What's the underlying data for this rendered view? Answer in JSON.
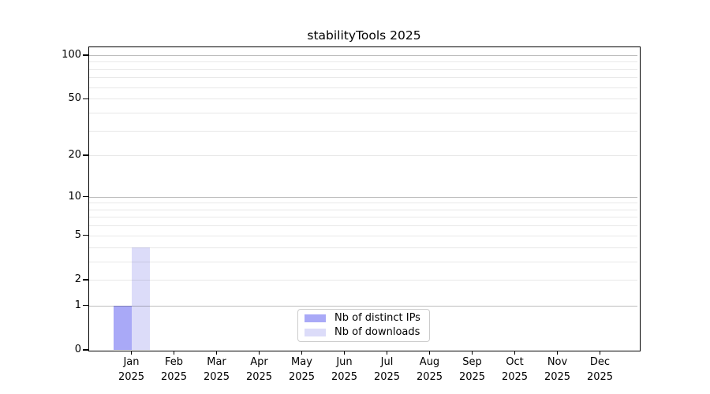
{
  "title": "stabilityTools 2025",
  "legend": {
    "items": [
      {
        "label": "Nb of distinct IPs",
        "color": "#a9a9f7"
      },
      {
        "label": "Nb of downloads",
        "color": "#dcdcf9"
      }
    ]
  },
  "chart_data": {
    "type": "bar",
    "title": "stabilityTools 2025",
    "categories": [
      "Jan 2025",
      "Feb 2025",
      "Mar 2025",
      "Apr 2025",
      "May 2025",
      "Jun 2025",
      "Jul 2025",
      "Aug 2025",
      "Sep 2025",
      "Oct 2025",
      "Nov 2025",
      "Dec 2025"
    ],
    "series": [
      {
        "name": "Nb of distinct IPs",
        "color": "#a9a9f7",
        "values": [
          1,
          0,
          0,
          0,
          0,
          0,
          0,
          0,
          0,
          0,
          0,
          0
        ]
      },
      {
        "name": "Nb of downloads",
        "color": "#dcdcf9",
        "values": [
          4,
          0,
          0,
          0,
          0,
          0,
          0,
          0,
          0,
          0,
          0,
          0
        ]
      }
    ],
    "xlabel": "",
    "ylabel": "",
    "yscale": "log1p",
    "ylim": [
      0,
      113
    ],
    "yticks": [
      0,
      1,
      2,
      5,
      10,
      20,
      50,
      100
    ],
    "grid_major_values": [
      1,
      10,
      100
    ],
    "grid_minor_values": [
      2,
      3,
      4,
      5,
      6,
      7,
      8,
      9,
      20,
      30,
      40,
      50,
      60,
      70,
      80,
      90
    ],
    "grid": "horizontal only",
    "legend_position": "lower center, inside axes"
  },
  "colors": {
    "background": "#ffffff",
    "spine": "#000000",
    "grid_major": "rgba(0,0,0,0.26)",
    "grid_minor": "rgba(0,0,0,0.09)",
    "text": "#000000",
    "legend_border": "#cccccc"
  }
}
